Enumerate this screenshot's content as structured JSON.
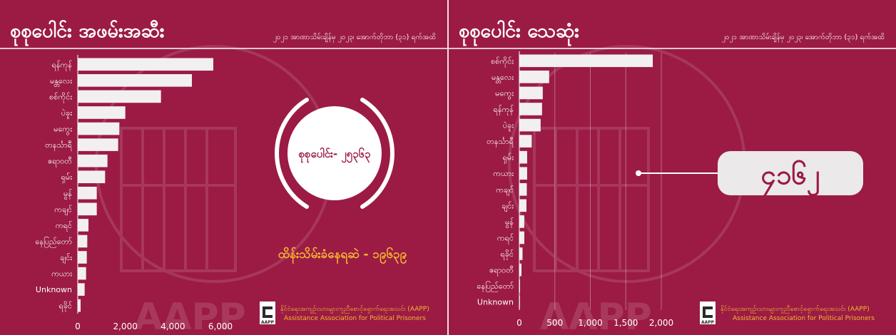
{
  "colors": {
    "background": "#9b1b45",
    "bars": "#f2eff1",
    "text": "#ffffff",
    "accent": "#f7b82b",
    "circle": "#ffffff"
  },
  "left": {
    "title": "စုစုပေါင်း အဖမ်းအဆီး",
    "subtitle": "၂၀၂၁ အာဏာသိမ်းချိန်မှ ၂၀၂၃၊ အောက်တိုဘာ (၃၁) ရက်အထိ",
    "total_label": "စုစုပေါင်း- ၂၅၃၆၃",
    "detained_label": "ထိန်းသိမ်းခံနေရဆဲ - ၁၉၆၃၉",
    "org_name_mm": "နိုင်ငံရေးအကျဉ်းသားများကူညီစောင့်ရှောက်ရေးအသင်း (AAPP)",
    "org_name_en": "Assistance Association for Political Prisoners",
    "logo_text": "AAPP"
  },
  "right": {
    "title": "စုစုပေါင်း သေဆုံး",
    "subtitle": "၂၀၂၁ အာဏာသိမ်းချိန်မှ ၂၀၂၃၊ အောက်တိုဘာ (၃၁) ရက်အထိ",
    "total_label": "၄၁၆၂",
    "org_name_mm": "နိုင်ငံရေးအကျဉ်းသားများကူညီစောင့်ရှောက်ရေးအသင်း (AAPP)",
    "org_name_en": "Assistance Association for Political Prisoners",
    "logo_text": "AAPP"
  },
  "chart_data": [
    {
      "type": "bar",
      "orientation": "horizontal",
      "categories": [
        "ရန်ကုန်",
        "မန္တလေး",
        "စစ်ကိုင်း",
        "ပဲခူး",
        "မကွေး",
        "တနင်္သာရီ",
        "ဧရာဝတီ",
        "ရှမ်း",
        "မွန်",
        "ကချင်",
        "ကရင်",
        "နေပြည်တော်",
        "ချင်း",
        "ကယား",
        "Unknown",
        "ရခိုင်"
      ],
      "values": [
        5700,
        4800,
        3500,
        2000,
        1750,
        1700,
        1250,
        1150,
        800,
        800,
        450,
        400,
        380,
        350,
        290,
        120
      ],
      "xticks": [
        "0",
        "2,000",
        "4,000",
        "6,000"
      ],
      "xlim": [
        0,
        6000
      ],
      "grid": false
    },
    {
      "type": "bar",
      "orientation": "horizontal",
      "categories": [
        "စစ်ကိုင်း",
        "မန္တလေး",
        "မကွေး",
        "ရန်ကုန်",
        "ပဲခူး",
        "တနင်္သာရီ",
        "ရှမ်း",
        "ကယား",
        "ကချင်",
        "ချင်း",
        "မွန်",
        "ကရင်",
        "ရခိုင်",
        "ဧရာဝတီ",
        "နေပြည်တော်",
        "Unknown"
      ],
      "values": [
        1880,
        420,
        330,
        320,
        300,
        175,
        110,
        110,
        105,
        100,
        70,
        70,
        45,
        30,
        10,
        5
      ],
      "xticks": [
        "0",
        "500",
        "1,000",
        "1,500",
        "2,000"
      ],
      "xlim": [
        0,
        2000
      ],
      "grid": true
    }
  ]
}
